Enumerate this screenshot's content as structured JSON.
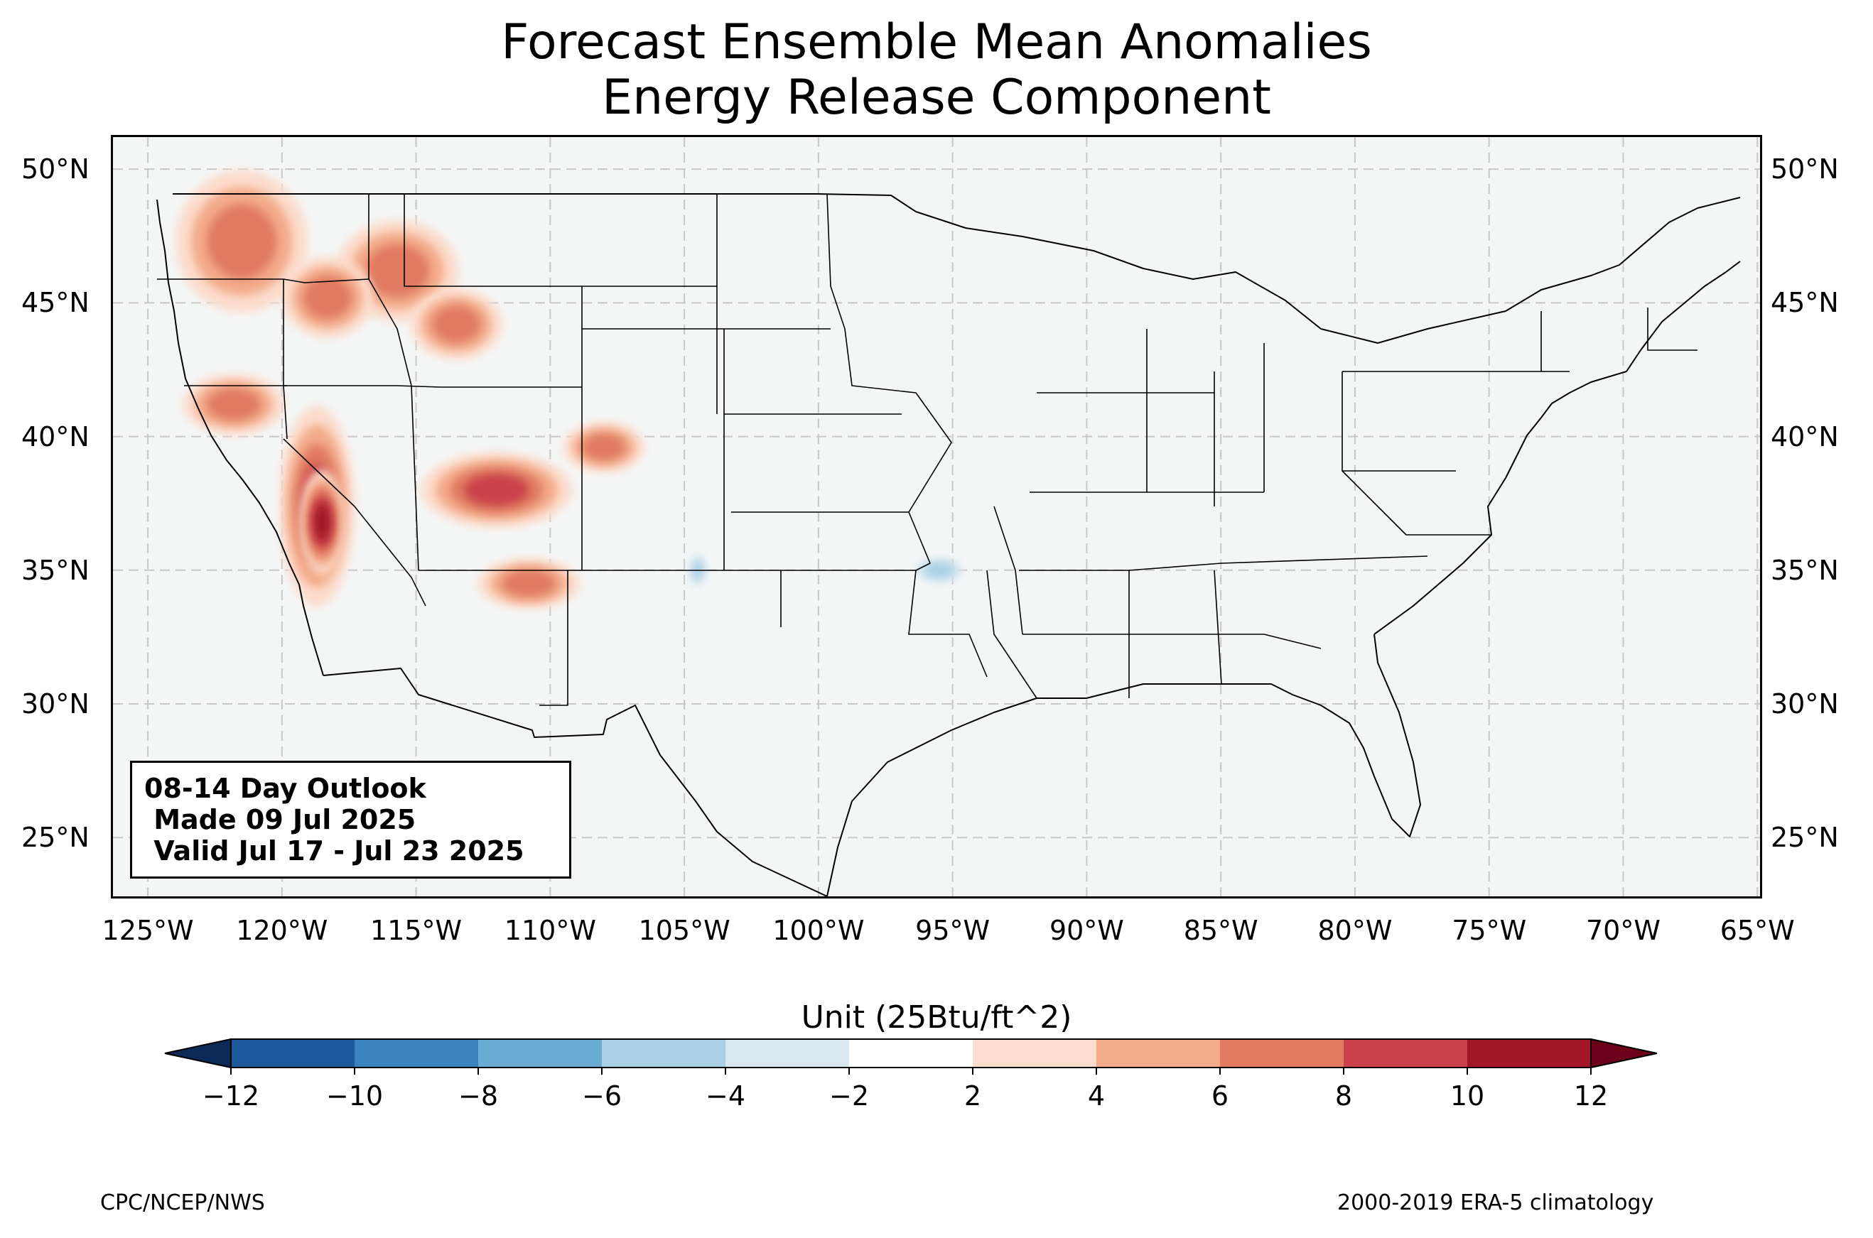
{
  "title": {
    "line1": "Forecast Ensemble Mean Anomalies",
    "line2": "Energy Release Component"
  },
  "map": {
    "extent": {
      "lon_min": -126.3,
      "lon_max": -64.9,
      "lat_min": 22.8,
      "lat_max": 51.2
    },
    "lat_ticks": [
      {
        "value": 50,
        "label": "50°N"
      },
      {
        "value": 45,
        "label": "45°N"
      },
      {
        "value": 40,
        "label": "40°N"
      },
      {
        "value": 35,
        "label": "35°N"
      },
      {
        "value": 30,
        "label": "30°N"
      },
      {
        "value": 25,
        "label": "25°N"
      }
    ],
    "lon_ticks": [
      {
        "value": -125,
        "label": "125°W"
      },
      {
        "value": -120,
        "label": "120°W"
      },
      {
        "value": -115,
        "label": "115°W"
      },
      {
        "value": -110,
        "label": "110°W"
      },
      {
        "value": -105,
        "label": "105°W"
      },
      {
        "value": -100,
        "label": "100°W"
      },
      {
        "value": -95,
        "label": "95°W"
      },
      {
        "value": -90,
        "label": "90°W"
      },
      {
        "value": -85,
        "label": "85°W"
      },
      {
        "value": -80,
        "label": "80°W"
      },
      {
        "value": -75,
        "label": "75°W"
      },
      {
        "value": -70,
        "label": "70°W"
      },
      {
        "value": -65,
        "label": "65°W"
      }
    ],
    "gridlines": true,
    "background_color": "#f4f6f6",
    "anomaly_areas": [
      {
        "region": "Washington Cascades",
        "lon": -121.5,
        "lat": 47.3,
        "rx": 1.3,
        "ry": 1.4,
        "level": 6
      },
      {
        "region": "Northern Idaho",
        "lon": -115.7,
        "lat": 46.2,
        "rx": 1.2,
        "ry": 1.0,
        "level": 6
      },
      {
        "region": "Central Idaho",
        "lon": -113.5,
        "lat": 44.2,
        "rx": 0.9,
        "ry": 0.7,
        "level": 6
      },
      {
        "region": "Eastern Oregon",
        "lon": -118.3,
        "lat": 45.2,
        "rx": 0.9,
        "ry": 0.8,
        "level": 6
      },
      {
        "region": "Northern California",
        "lon": -121.8,
        "lat": 41.2,
        "rx": 1.0,
        "ry": 0.6,
        "level": 6
      },
      {
        "region": "Sierra Nevada",
        "lon": -118.7,
        "lat": 37.4,
        "rx": 0.6,
        "ry": 1.6,
        "level": 8
      },
      {
        "region": "Sierra Nevada core",
        "lon": -118.5,
        "lat": 36.8,
        "rx": 0.3,
        "ry": 0.7,
        "level": 10
      },
      {
        "region": "Southern Utah",
        "lon": -112.0,
        "lat": 38.0,
        "rx": 1.2,
        "ry": 0.6,
        "level": 8
      },
      {
        "region": "Western Colorado",
        "lon": -108.0,
        "lat": 39.6,
        "rx": 0.8,
        "ry": 0.5,
        "level": 6
      },
      {
        "region": "Central Arizona",
        "lon": -110.8,
        "lat": 34.5,
        "rx": 1.0,
        "ry": 0.5,
        "level": 6
      },
      {
        "region": "Southeastern New Mexico",
        "lon": -104.5,
        "lat": 35.0,
        "rx": 0.2,
        "ry": 0.4,
        "level": -4
      },
      {
        "region": "Eastern Oklahoma",
        "lon": -95.5,
        "lat": 35.0,
        "rx": 0.6,
        "ry": 0.3,
        "level": -4
      }
    ]
  },
  "info_box": {
    "line1": "08-14 Day Outlook",
    "line2": " Made 09 Jul 2025",
    "line3": " Valid Jul 17 - Jul 23 2025"
  },
  "colorbar": {
    "title": "Unit (25Btu/ft^2)",
    "levels": [
      -12,
      -10,
      -8,
      -6,
      -4,
      -2,
      2,
      4,
      6,
      8,
      10,
      12
    ],
    "tick_labels": [
      "−12",
      "−10",
      "−8",
      "−6",
      "−4",
      "−2",
      "2",
      "4",
      "6",
      "8",
      "10",
      "12"
    ],
    "colors": [
      "#1c5a9c",
      "#3a83bd",
      "#6aabd3",
      "#a9d0e5",
      "#d9e8f0",
      "#ffffff",
      "#fcdccc",
      "#f3ab8a",
      "#e07b60",
      "#c9424a",
      "#a21628"
    ],
    "under_color": "#0b2a57",
    "over_color": "#6b0018"
  },
  "footer": {
    "left": "CPC/NCEP/NWS",
    "right": "2000-2019 ERA-5 climatology"
  }
}
